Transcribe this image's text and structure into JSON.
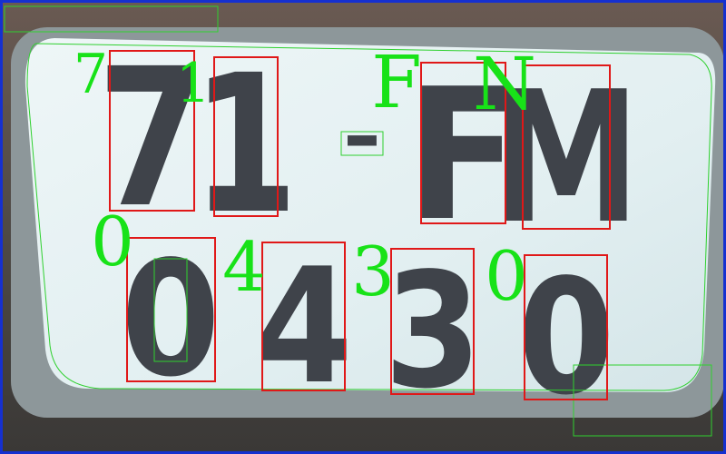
{
  "plate": {
    "row1": [
      "7",
      "1",
      "-",
      "F",
      "M"
    ],
    "row2": [
      "0",
      "4",
      "3",
      "0"
    ]
  },
  "recognized": {
    "row1": [
      "7",
      "1",
      "F",
      "N"
    ],
    "row2": [
      "0",
      "4",
      "3",
      "0"
    ]
  },
  "colors": {
    "plate_background": "#dfeef0",
    "plate_characters": "#3f434a",
    "recognized_text": "#18e218",
    "character_boxes": "#e01818",
    "contours": "#2fd02f",
    "image_border": "#1530d0"
  }
}
